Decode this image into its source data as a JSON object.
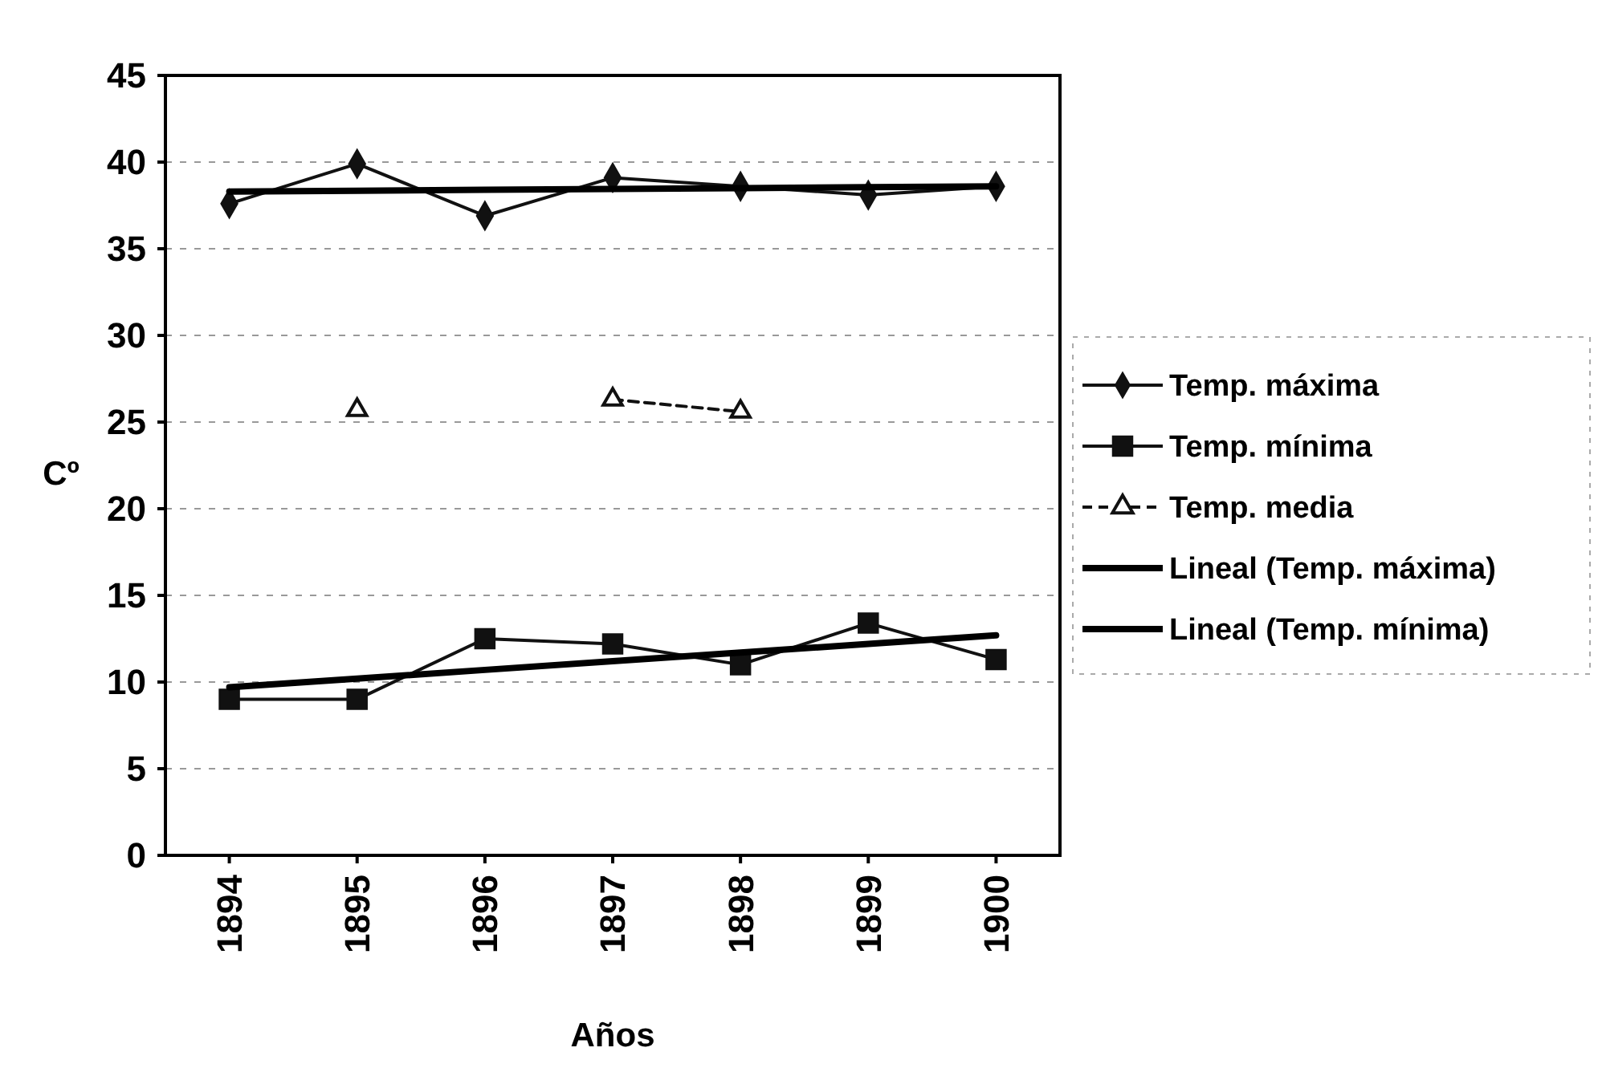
{
  "chart_data": {
    "type": "line",
    "xlabel": "Años",
    "ylabel": "Cº",
    "categories": [
      "1894",
      "1895",
      "1896",
      "1897",
      "1898",
      "1899",
      "1900"
    ],
    "ylim": [
      0,
      45
    ],
    "yticks": [
      0,
      5,
      10,
      15,
      20,
      25,
      30,
      35,
      40,
      45
    ],
    "grid": "y",
    "legend": "right",
    "series": [
      {
        "name": "Temp. máxima",
        "color": "#111111",
        "marker": "diamond",
        "line_style": "solid",
        "values": [
          37.6,
          39.9,
          36.9,
          39.1,
          38.6,
          38.1,
          38.6
        ]
      },
      {
        "name": "Temp. mínima",
        "color": "#111111",
        "marker": "square",
        "line_style": "solid",
        "values": [
          9.0,
          9.0,
          12.5,
          12.2,
          11.0,
          13.4,
          11.3
        ]
      },
      {
        "name": "Temp. media",
        "color": "#111111",
        "marker": "triangle",
        "line_style": "dashed",
        "values": [
          null,
          25.7,
          null,
          26.3,
          25.6,
          null,
          null
        ]
      },
      {
        "name": "Lineal (Temp. máxima)",
        "color": "#000000",
        "marker": "none",
        "line_style": "solid",
        "values": [
          38.3,
          38.35,
          38.4,
          38.45,
          38.5,
          38.55,
          38.6
        ]
      },
      {
        "name": "Lineal (Temp. mínima)",
        "color": "#000000",
        "marker": "none",
        "line_style": "solid",
        "values": [
          9.7,
          10.2,
          10.7,
          11.2,
          11.7,
          12.2,
          12.7
        ]
      }
    ]
  }
}
